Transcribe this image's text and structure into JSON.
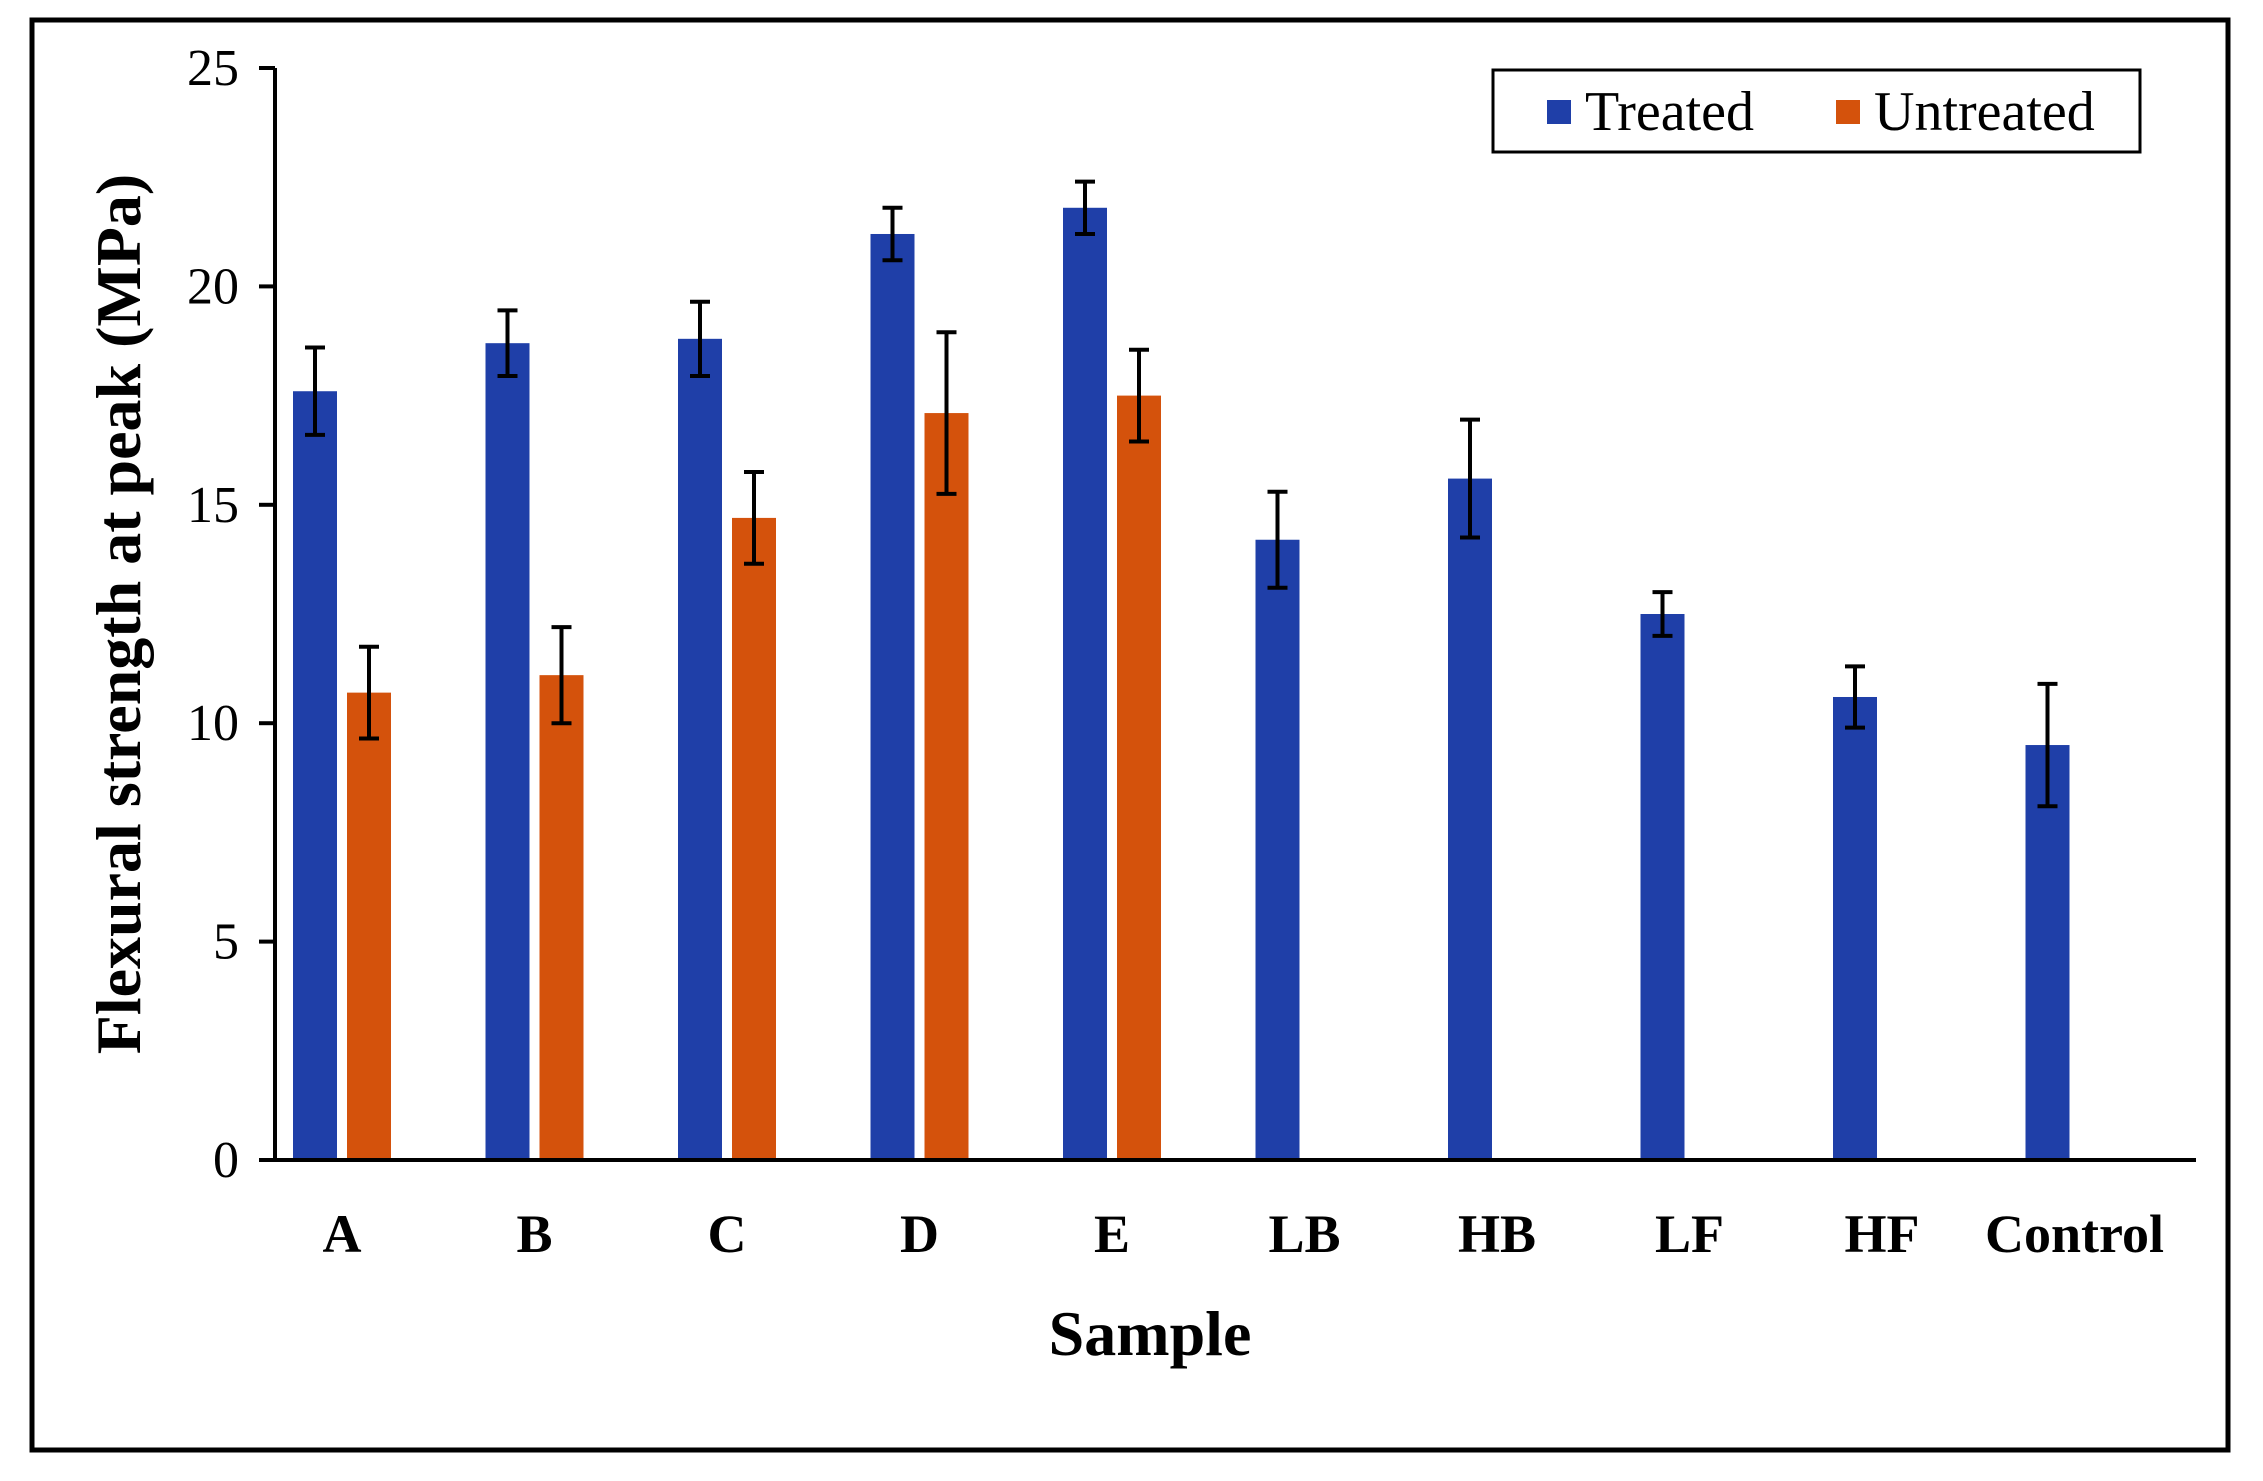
{
  "chart_data": {
    "type": "bar",
    "title": "",
    "xlabel": "Sample",
    "ylabel": "Flexural strength at peak (MPa)",
    "ylim": [
      0,
      25
    ],
    "yticks": [
      0,
      5,
      10,
      15,
      20,
      25
    ],
    "grid": false,
    "legend_position": "top-right",
    "categories": [
      "A",
      "B",
      "C",
      "D",
      "E",
      "LB",
      "HB",
      "LF",
      "HF",
      "Control"
    ],
    "series": [
      {
        "name": "Treated",
        "color": "#1f3fa8",
        "values": [
          17.6,
          18.7,
          18.8,
          21.2,
          21.8,
          14.2,
          15.6,
          12.5,
          10.6,
          9.5
        ],
        "errors": [
          1.0,
          0.75,
          0.85,
          0.6,
          0.6,
          1.1,
          1.35,
          0.5,
          0.7,
          1.4
        ]
      },
      {
        "name": "Untreated",
        "color": "#d4520c",
        "values": [
          10.7,
          11.1,
          14.7,
          17.1,
          17.5,
          null,
          null,
          null,
          null,
          null
        ],
        "errors": [
          1.05,
          1.1,
          1.05,
          1.85,
          1.05,
          null,
          null,
          null,
          null,
          null
        ]
      }
    ]
  }
}
